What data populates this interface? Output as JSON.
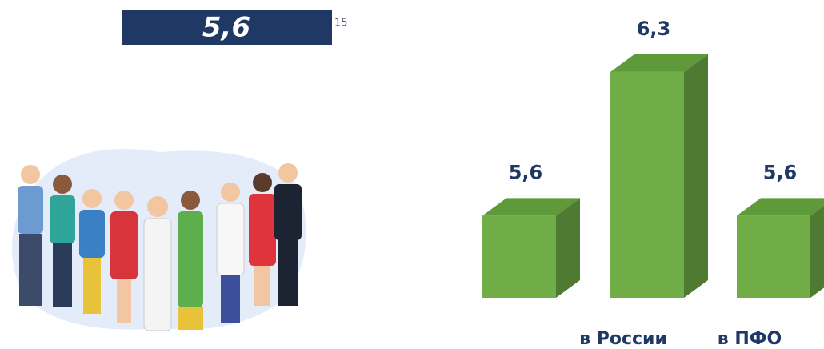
{
  "banner": {
    "text": "5,6",
    "footnote": "15"
  },
  "chart_data": {
    "type": "bar3d",
    "categories": [
      null,
      "в России",
      "в ПФО"
    ],
    "values": [
      5.6,
      6.3,
      5.6
    ],
    "value_labels": [
      "5,6",
      "6,3",
      "5,6"
    ],
    "color": "#70ad47",
    "ylim": [
      5.2,
      6.35
    ]
  }
}
